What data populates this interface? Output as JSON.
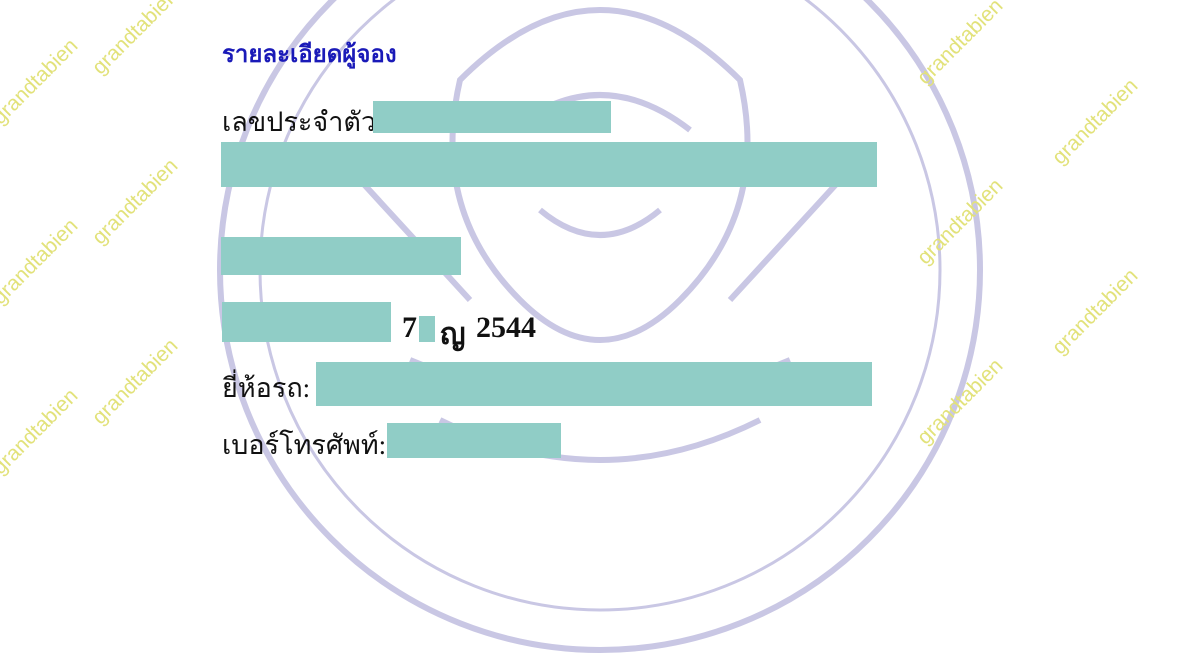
{
  "watermark": "grandtabien",
  "colors": {
    "title": "#1a1ab8",
    "redaction": "#90cdc6",
    "watermark": "#e2e27a",
    "seal": "#c9c7e4"
  },
  "section_title": "รายละเอียดผู้จอง",
  "fields": {
    "id_label": "เลขประจำตัว:",
    "brand_label": "ยี่ห้อรถ:",
    "phone_label": "เบอร์โทรศัพท์:"
  },
  "date": {
    "day_digit": "7",
    "month_fragment": "ญ",
    "year": "2544"
  }
}
